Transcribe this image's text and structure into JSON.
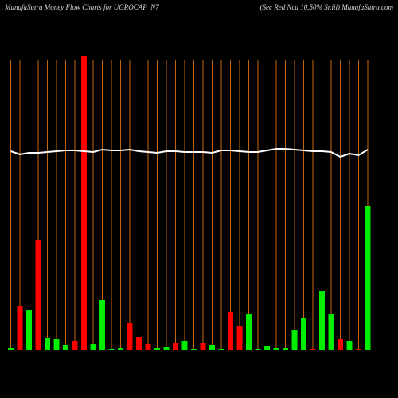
{
  "chart_data": {
    "type": "bar",
    "title": "MunafaSutra  Money Flow  Charts for UGROCAP_N7",
    "subtitle": "(Sec Red Ncd 10.50% Sr.iii) MunafaSutra.com",
    "categories": [
      null,
      null,
      null,
      null,
      null,
      null,
      null,
      null,
      null,
      null,
      null,
      null,
      null,
      null,
      null,
      null,
      null,
      null,
      null,
      null,
      null,
      null,
      null,
      null,
      null,
      null,
      null,
      null,
      null,
      null,
      null,
      null,
      null,
      null,
      null,
      null,
      null,
      null,
      null,
      null
    ],
    "values": [
      3,
      56,
      50,
      139,
      16,
      14,
      6,
      12,
      370,
      8,
      63,
      2,
      3,
      34,
      17,
      8,
      3,
      4,
      9,
      12,
      2,
      9,
      6,
      2,
      48,
      30,
      46,
      2,
      5,
      3,
      3,
      26,
      40,
      2,
      74,
      46,
      14,
      11,
      2,
      181
    ],
    "colors": [
      "#00ee00",
      "#ff0000",
      "#00ee00",
      "#ff0000",
      "#00ee00",
      "#00ee00",
      "#00ee00",
      "#ff0000",
      "#ff0000",
      "#00ee00",
      "#00ee00",
      "#00ee00",
      "#00ee00",
      "#ff0000",
      "#ff0000",
      "#ff0000",
      "#00ee00",
      "#00ee00",
      "#ff0000",
      "#00ee00",
      "#00ee00",
      "#ff0000",
      "#00ee00",
      "#00ee00",
      "#ff0000",
      "#ff0000",
      "#00ee00",
      "#00ee00",
      "#00ee00",
      "#00ee00",
      "#00ee00",
      "#00ee00",
      "#00ee00",
      "#ff0000",
      "#00ee00",
      "#00ee00",
      "#ff0000",
      "#00ee00",
      "#ff0000",
      "#00ee00"
    ],
    "line": {
      "color": "#ffffff",
      "values": [
        250,
        246,
        248,
        248,
        249,
        250,
        251,
        251,
        250,
        249,
        252,
        251,
        251,
        252,
        250,
        249,
        248,
        250,
        250,
        249,
        249,
        249,
        248,
        251,
        251,
        250,
        249,
        249,
        251,
        253,
        253,
        252,
        251,
        250,
        250,
        249,
        243,
        247,
        245,
        252
      ]
    },
    "ylim": [
      0,
      370
    ],
    "grid": true,
    "grid_color": "#c8660c"
  }
}
